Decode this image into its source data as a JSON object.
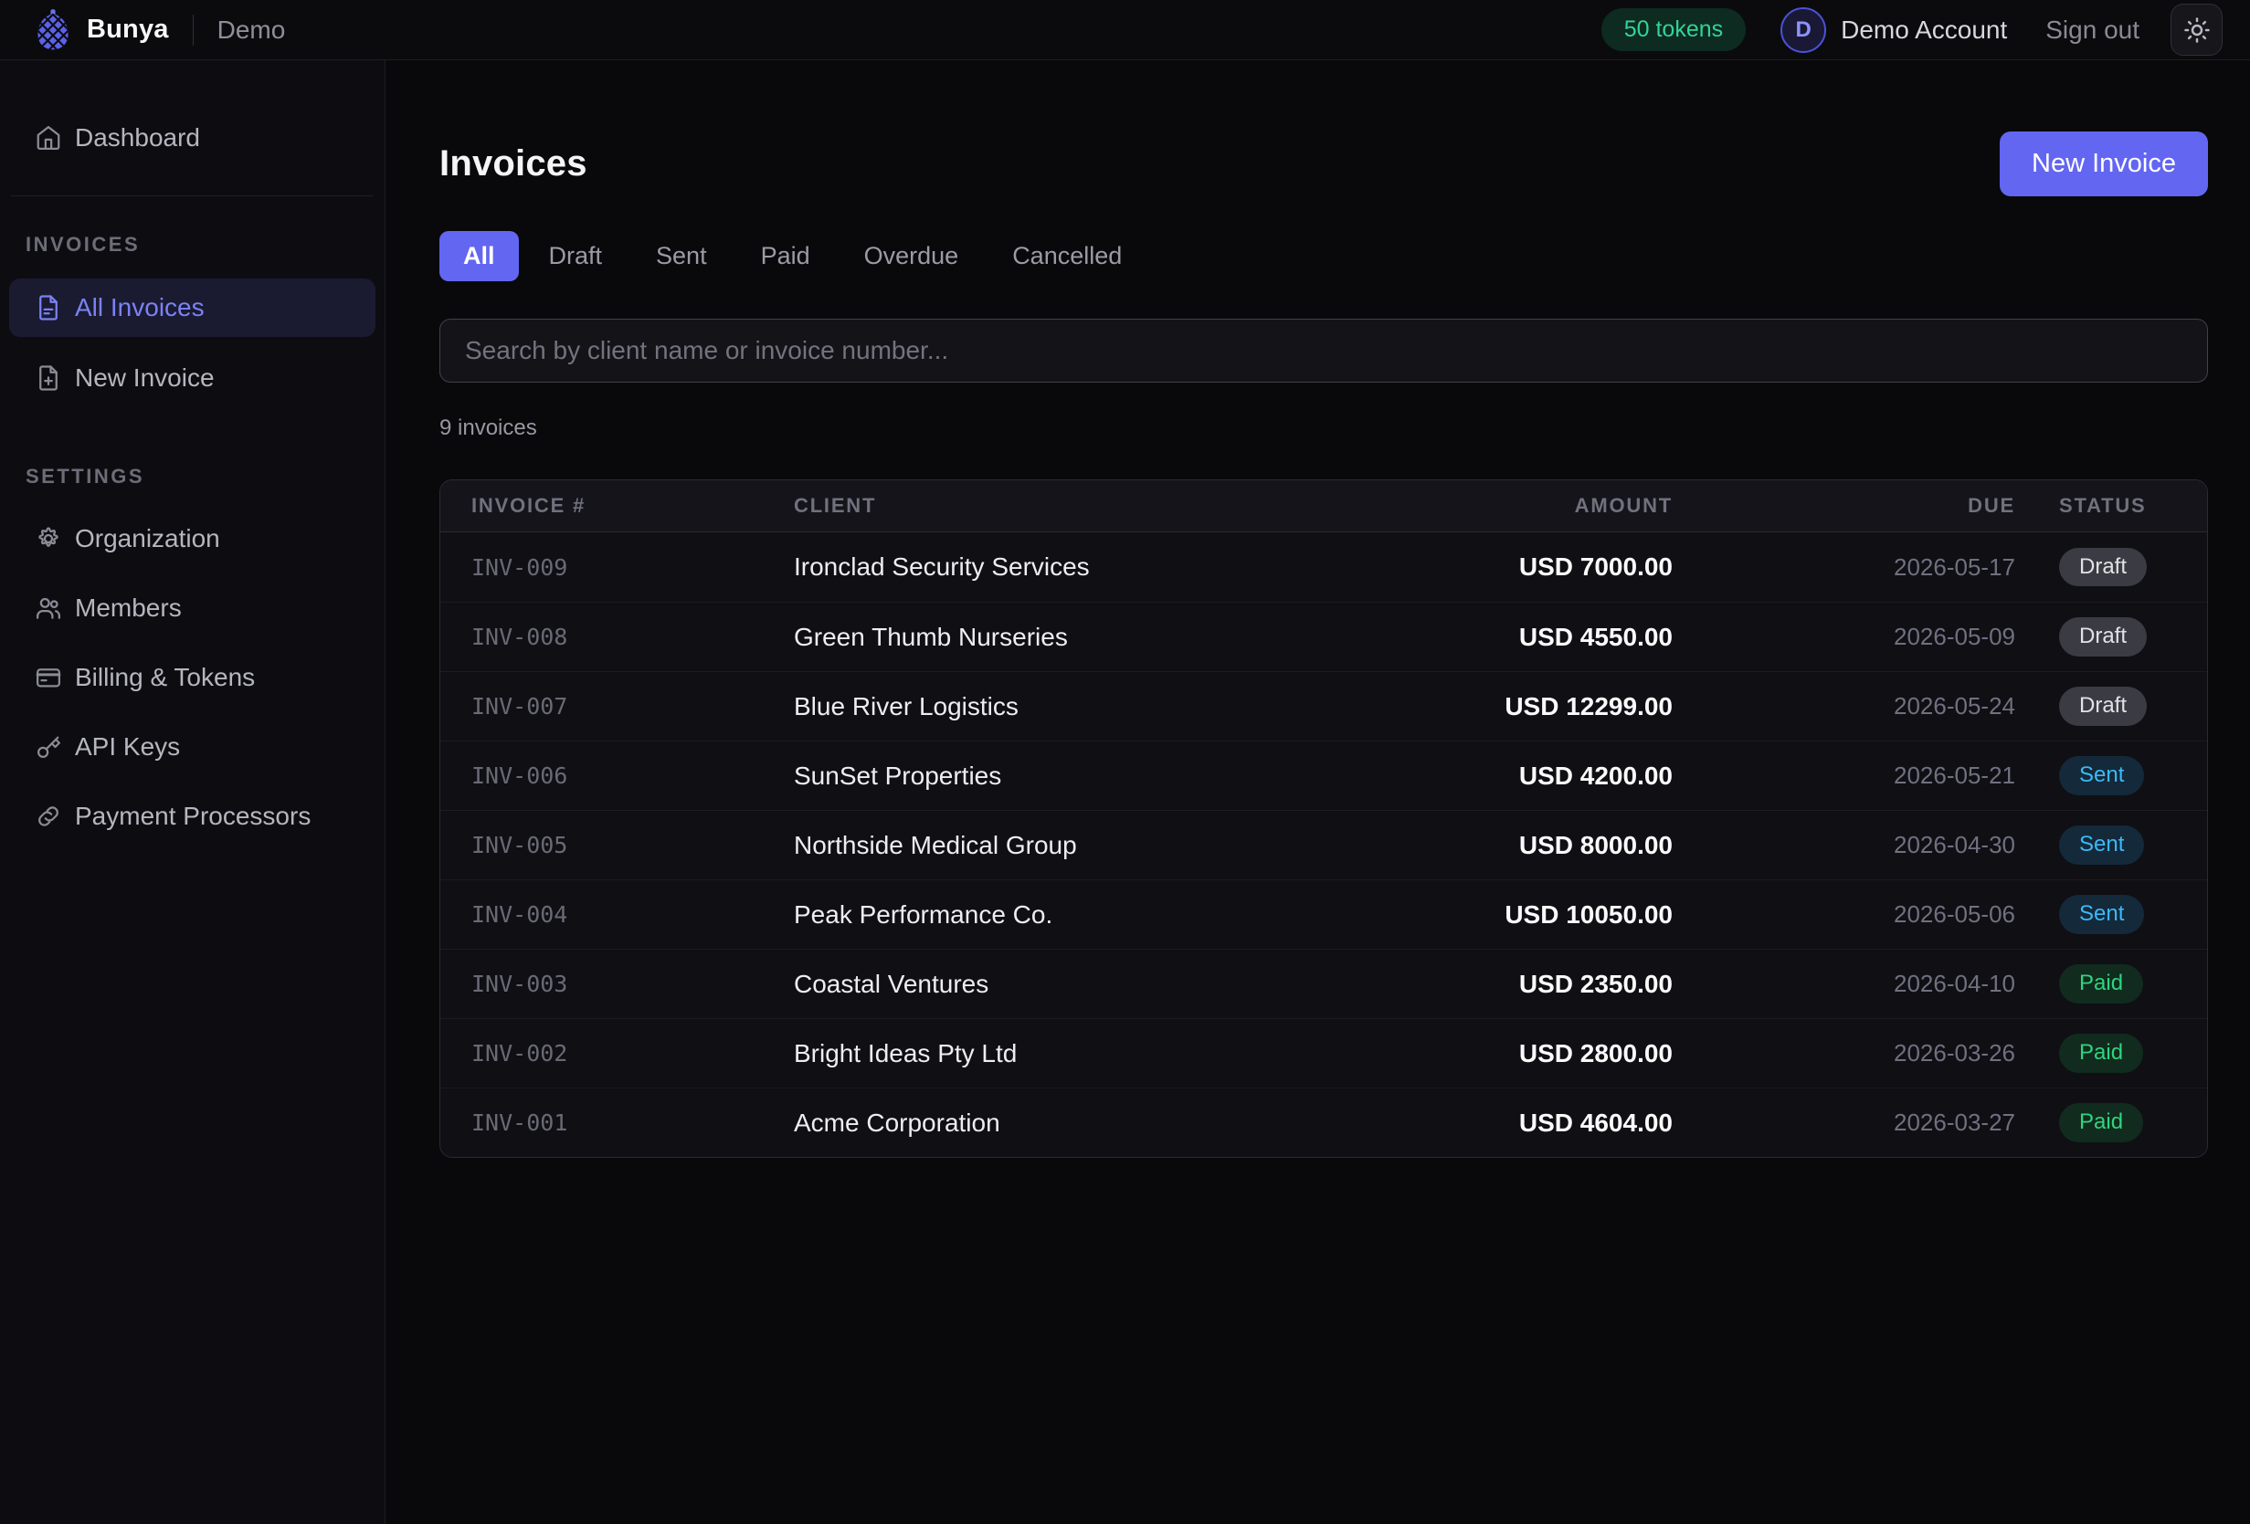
{
  "topbar": {
    "brand": "Bunya",
    "workspace": "Demo",
    "tokens_badge": "50 tokens",
    "avatar_initial": "D",
    "account_name": "Demo Account",
    "sign_out": "Sign out",
    "logo_icon": "pinecone-icon",
    "theme_icon": "sun-icon"
  },
  "sidebar": {
    "dashboard": {
      "label": "Dashboard",
      "icon": "home-icon"
    },
    "sections": [
      {
        "label": "INVOICES",
        "items": [
          {
            "label": "All Invoices",
            "icon": "file-text-icon",
            "active": true
          },
          {
            "label": "New Invoice",
            "icon": "file-plus-icon",
            "active": false
          }
        ]
      },
      {
        "label": "SETTINGS",
        "items": [
          {
            "label": "Organization",
            "icon": "gear-icon",
            "active": false
          },
          {
            "label": "Members",
            "icon": "users-icon",
            "active": false
          },
          {
            "label": "Billing & Tokens",
            "icon": "credit-card-icon",
            "active": false
          },
          {
            "label": "API Keys",
            "icon": "key-icon",
            "active": false
          },
          {
            "label": "Payment Processors",
            "icon": "link-icon",
            "active": false
          }
        ]
      }
    ]
  },
  "main": {
    "title": "Invoices",
    "new_invoice_button": "New Invoice",
    "tabs": [
      {
        "label": "All",
        "active": true
      },
      {
        "label": "Draft",
        "active": false
      },
      {
        "label": "Sent",
        "active": false
      },
      {
        "label": "Paid",
        "active": false
      },
      {
        "label": "Overdue",
        "active": false
      },
      {
        "label": "Cancelled",
        "active": false
      }
    ],
    "search_placeholder": "Search by client name or invoice number...",
    "count_text": "9 invoices",
    "table": {
      "columns": [
        "INVOICE #",
        "CLIENT",
        "AMOUNT",
        "DUE",
        "STATUS"
      ],
      "rows": [
        {
          "number": "INV-009",
          "client": "Ironclad Security Services",
          "amount": "USD 7000.00",
          "due": "2026-05-17",
          "status": "Draft"
        },
        {
          "number": "INV-008",
          "client": "Green Thumb Nurseries",
          "amount": "USD 4550.00",
          "due": "2026-05-09",
          "status": "Draft"
        },
        {
          "number": "INV-007",
          "client": "Blue River Logistics",
          "amount": "USD 12299.00",
          "due": "2026-05-24",
          "status": "Draft"
        },
        {
          "number": "INV-006",
          "client": "SunSet Properties",
          "amount": "USD 4200.00",
          "due": "2026-05-21",
          "status": "Sent"
        },
        {
          "number": "INV-005",
          "client": "Northside Medical Group",
          "amount": "USD 8000.00",
          "due": "2026-04-30",
          "status": "Sent"
        },
        {
          "number": "INV-004",
          "client": "Peak Performance Co.",
          "amount": "USD 10050.00",
          "due": "2026-05-06",
          "status": "Sent"
        },
        {
          "number": "INV-003",
          "client": "Coastal Ventures",
          "amount": "USD 2350.00",
          "due": "2026-04-10",
          "status": "Paid"
        },
        {
          "number": "INV-002",
          "client": "Bright Ideas Pty Ltd",
          "amount": "USD 2800.00",
          "due": "2026-03-26",
          "status": "Paid"
        },
        {
          "number": "INV-001",
          "client": "Acme Corporation",
          "amount": "USD 4604.00",
          "due": "2026-03-27",
          "status": "Paid"
        }
      ]
    }
  },
  "colors": {
    "accent_indigo": "#6366f1",
    "token_green": "#34d399",
    "sent_blue": "#3cb9f8",
    "paid_green": "#30d47e",
    "draft_gray": "#3b3b43",
    "page_bg": "#09090b",
    "sidebar_bg": "#0d0d11",
    "table_bg": "#0f0f14"
  }
}
